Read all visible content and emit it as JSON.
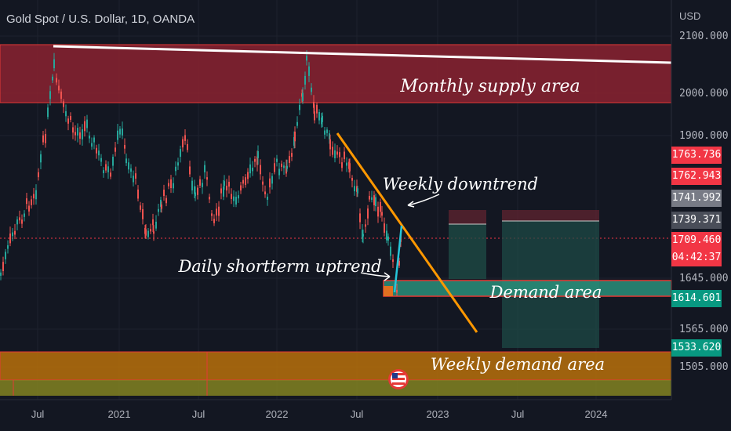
{
  "header": {
    "title": "Gold Spot / U.S. Dollar, 1D, OANDA"
  },
  "chart_data": {
    "type": "candlestick",
    "symbol": "Gold Spot / U.S. Dollar",
    "interval": "1D",
    "source": "OANDA",
    "currency": "USD",
    "y_tick_labels": [
      "2100.000",
      "2000.000",
      "1900.000",
      "1645.000",
      "1565.000",
      "1505.000"
    ],
    "x_tick_labels": [
      "Jul",
      "2021",
      "Jul",
      "2022",
      "Jul",
      "2023",
      "Jul",
      "2024"
    ],
    "price_tags": [
      {
        "label": "1763.736",
        "color": "#f23645"
      },
      {
        "label": "1762.943",
        "color": "#f23645"
      },
      {
        "label": "1741.992",
        "color": "#787b86"
      },
      {
        "label": "1739.371",
        "color": "#4a4e59"
      },
      {
        "label": "1709.460",
        "color": "#f23645"
      },
      {
        "label": "04:42:37",
        "color": "#f23645"
      },
      {
        "label": "1614.601",
        "color": "#089981"
      },
      {
        "label": "1533.620",
        "color": "#089981"
      }
    ],
    "annotations": [
      "Monthly supply area",
      "Weekly downtrend",
      "Daily shortterm uptrend",
      "Demand area",
      "Weekly demand area"
    ],
    "colors": {
      "background": "#131722",
      "up_candle": "#26a69a",
      "down_candle": "#ef5350",
      "supply_zone": "#8b2230",
      "demand_zone": "#2a8f7a",
      "weekly_demand_zone": "#b8860b",
      "trendline": "#ff9800",
      "resistance_line": "#ffffff"
    }
  }
}
